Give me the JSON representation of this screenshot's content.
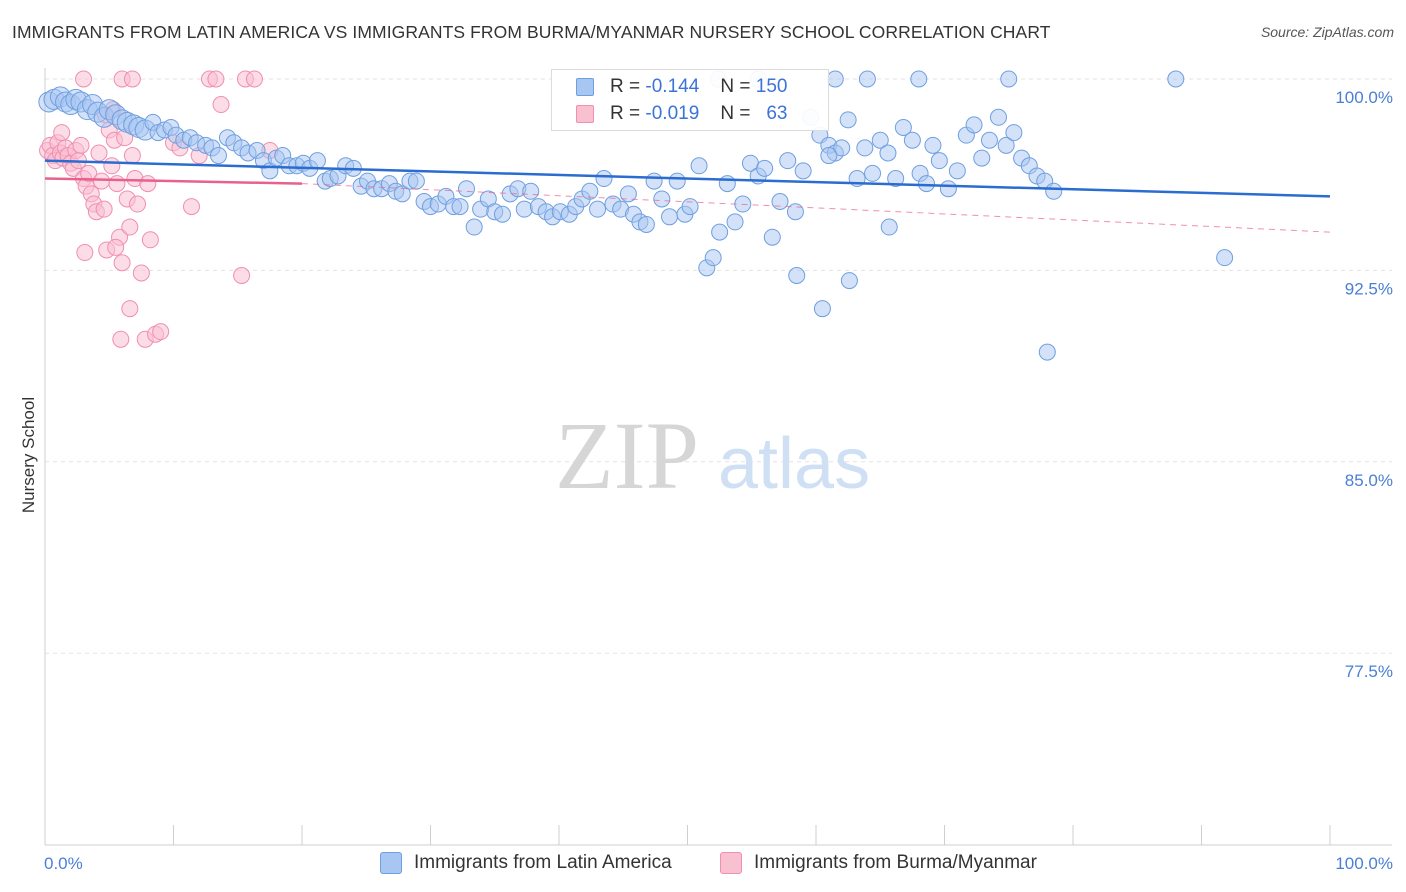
{
  "header": {
    "title": "IMMIGRANTS FROM LATIN AMERICA VS IMMIGRANTS FROM BURMA/MYANMAR NURSERY SCHOOL CORRELATION CHART",
    "source": "Source: ZipAtlas.com"
  },
  "watermark": {
    "zip": "ZIP",
    "atlas": "atlas"
  },
  "legend_stats": {
    "r_label": "R =",
    "n_label": "N =",
    "series1": {
      "r": "-0.144",
      "n": "150"
    },
    "series2": {
      "r": "-0.019",
      "n": "63"
    }
  },
  "colors": {
    "series1_fill": "#a8c6f2",
    "series1_stroke": "#6f9fe0",
    "series1_line": "#2a6ccf",
    "series2_fill": "#f9c0d2",
    "series2_stroke": "#f08fb0",
    "series2_line": "#e8608e",
    "axis_text": "#4a7fd4",
    "grid": "#e3e3e3"
  },
  "chart_data": {
    "type": "scatter",
    "ylabel": "Nursery School",
    "xlabel": "",
    "xlim": [
      0,
      100
    ],
    "ylim": [
      70.0,
      101.5
    ],
    "x_tick_labels": [
      "0.0%",
      "100.0%"
    ],
    "y_ticks": [
      100.0,
      92.5,
      85.0,
      77.5
    ],
    "y_tick_labels": [
      "100.0%",
      "92.5%",
      "85.0%",
      "77.5%"
    ],
    "grid": "horizontal dashed",
    "legend_position": "bottom-center",
    "series": [
      {
        "name": "Immigrants from Latin America",
        "trend": {
          "x": [
            0,
            100
          ],
          "y": [
            96.8,
            95.4
          ]
        },
        "points": [
          [
            0.3,
            99.1
          ],
          [
            0.7,
            99.2
          ],
          [
            1.2,
            99.3
          ],
          [
            1.6,
            99.1
          ],
          [
            2.0,
            99.0
          ],
          [
            2.4,
            99.2
          ],
          [
            2.8,
            99.1
          ],
          [
            3.3,
            98.8
          ],
          [
            3.7,
            99.0
          ],
          [
            4.1,
            98.7
          ],
          [
            4.6,
            98.5
          ],
          [
            5.0,
            98.8
          ],
          [
            5.5,
            98.6
          ],
          [
            6.0,
            98.4
          ],
          [
            6.4,
            98.3
          ],
          [
            6.9,
            98.2
          ],
          [
            7.3,
            98.1
          ],
          [
            7.8,
            98.0
          ],
          [
            8.4,
            98.3
          ],
          [
            8.8,
            97.9
          ],
          [
            9.3,
            98.0
          ],
          [
            9.8,
            98.1
          ],
          [
            10.2,
            97.8
          ],
          [
            10.8,
            97.6
          ],
          [
            11.3,
            97.7
          ],
          [
            11.8,
            97.5
          ],
          [
            12.5,
            97.4
          ],
          [
            13.0,
            97.3
          ],
          [
            13.5,
            97.0
          ],
          [
            14.2,
            97.7
          ],
          [
            14.7,
            97.5
          ],
          [
            15.3,
            97.3
          ],
          [
            15.8,
            97.1
          ],
          [
            16.5,
            97.2
          ],
          [
            17.0,
            96.8
          ],
          [
            17.5,
            96.4
          ],
          [
            18.0,
            96.9
          ],
          [
            18.5,
            97.0
          ],
          [
            19.0,
            96.6
          ],
          [
            19.6,
            96.6
          ],
          [
            20.1,
            96.7
          ],
          [
            20.6,
            96.5
          ],
          [
            21.2,
            96.8
          ],
          [
            21.8,
            96.0
          ],
          [
            22.2,
            96.1
          ],
          [
            22.8,
            96.2
          ],
          [
            23.4,
            96.6
          ],
          [
            24.0,
            96.5
          ],
          [
            24.6,
            95.8
          ],
          [
            25.1,
            96.0
          ],
          [
            25.6,
            95.7
          ],
          [
            26.2,
            95.7
          ],
          [
            26.8,
            95.9
          ],
          [
            27.3,
            95.6
          ],
          [
            27.8,
            95.5
          ],
          [
            28.4,
            96.0
          ],
          [
            28.9,
            96.0
          ],
          [
            29.5,
            95.2
          ],
          [
            30.0,
            95.0
          ],
          [
            30.6,
            95.1
          ],
          [
            31.2,
            95.4
          ],
          [
            31.8,
            95.0
          ],
          [
            32.3,
            95.0
          ],
          [
            32.8,
            95.7
          ],
          [
            33.4,
            94.2
          ],
          [
            33.9,
            94.9
          ],
          [
            34.5,
            95.3
          ],
          [
            35.0,
            94.8
          ],
          [
            35.6,
            94.7
          ],
          [
            36.2,
            95.5
          ],
          [
            36.8,
            95.7
          ],
          [
            37.3,
            94.9
          ],
          [
            37.8,
            95.6
          ],
          [
            38.4,
            95.0
          ],
          [
            39.0,
            94.8
          ],
          [
            39.5,
            94.6
          ],
          [
            40.1,
            94.8
          ],
          [
            40.8,
            94.7
          ],
          [
            41.3,
            95.0
          ],
          [
            41.8,
            95.3
          ],
          [
            42.4,
            95.6
          ],
          [
            43.0,
            94.9
          ],
          [
            43.5,
            96.1
          ],
          [
            44.2,
            95.1
          ],
          [
            44.8,
            94.9
          ],
          [
            45.4,
            95.5
          ],
          [
            45.8,
            94.7
          ],
          [
            46.3,
            94.4
          ],
          [
            46.8,
            94.3
          ],
          [
            47.4,
            96.0
          ],
          [
            48.0,
            95.3
          ],
          [
            48.6,
            94.6
          ],
          [
            49.2,
            96.0
          ],
          [
            49.8,
            94.7
          ],
          [
            50.2,
            95.0
          ],
          [
            50.9,
            96.6
          ],
          [
            51.5,
            92.6
          ],
          [
            52.0,
            93.0
          ],
          [
            52.5,
            94.0
          ],
          [
            53.1,
            95.9
          ],
          [
            53.7,
            94.4
          ],
          [
            54.3,
            95.1
          ],
          [
            54.9,
            96.7
          ],
          [
            55.5,
            96.2
          ],
          [
            56.0,
            96.5
          ],
          [
            56.6,
            93.8
          ],
          [
            57.2,
            95.2
          ],
          [
            57.8,
            96.8
          ],
          [
            58.4,
            94.8
          ],
          [
            59.0,
            96.4
          ],
          [
            59.6,
            98.5
          ],
          [
            60.3,
            97.8
          ],
          [
            61.0,
            97.4
          ],
          [
            61.5,
            97.1
          ],
          [
            62.0,
            97.3
          ],
          [
            62.5,
            98.4
          ],
          [
            63.2,
            96.1
          ],
          [
            63.8,
            97.3
          ],
          [
            64.4,
            96.3
          ],
          [
            65.0,
            97.6
          ],
          [
            65.6,
            97.1
          ],
          [
            66.2,
            96.1
          ],
          [
            66.8,
            98.1
          ],
          [
            67.5,
            97.6
          ],
          [
            68.1,
            96.3
          ],
          [
            68.6,
            95.9
          ],
          [
            69.1,
            97.4
          ],
          [
            69.6,
            96.8
          ],
          [
            70.3,
            95.7
          ],
          [
            71.0,
            96.4
          ],
          [
            71.7,
            97.8
          ],
          [
            72.3,
            98.2
          ],
          [
            72.9,
            96.9
          ],
          [
            73.5,
            97.6
          ],
          [
            74.2,
            98.5
          ],
          [
            74.8,
            97.4
          ],
          [
            75.4,
            97.9
          ],
          [
            76.0,
            96.9
          ],
          [
            76.6,
            96.6
          ],
          [
            77.2,
            96.2
          ],
          [
            77.8,
            96.0
          ],
          [
            78.5,
            95.6
          ],
          [
            58.5,
            92.3
          ],
          [
            62.6,
            92.1
          ],
          [
            65.7,
            94.2
          ],
          [
            60.5,
            91.0
          ],
          [
            61.0,
            97.0
          ],
          [
            78.0,
            89.3
          ],
          [
            91.8,
            93.0
          ],
          [
            52.4,
            100.0
          ],
          [
            55.5,
            100.0
          ],
          [
            61.5,
            100.0
          ],
          [
            64.0,
            100.0
          ],
          [
            68.0,
            100.0
          ],
          [
            75.0,
            100.0
          ],
          [
            88.0,
            100.0
          ]
        ]
      },
      {
        "name": "Immigrants from Burma/Myanmar",
        "trend": {
          "x": [
            0,
            20
          ],
          "y": [
            96.1,
            95.9
          ]
        },
        "points": [
          [
            0.2,
            97.2
          ],
          [
            0.4,
            97.4
          ],
          [
            0.6,
            97.0
          ],
          [
            0.8,
            96.8
          ],
          [
            1.0,
            97.5
          ],
          [
            1.2,
            97.1
          ],
          [
            1.4,
            96.9
          ],
          [
            1.6,
            97.3
          ],
          [
            1.8,
            97.0
          ],
          [
            2.0,
            96.7
          ],
          [
            2.2,
            96.5
          ],
          [
            2.4,
            97.2
          ],
          [
            2.6,
            96.8
          ],
          [
            2.8,
            97.4
          ],
          [
            3.0,
            96.1
          ],
          [
            3.2,
            95.8
          ],
          [
            3.4,
            96.3
          ],
          [
            3.6,
            95.5
          ],
          [
            3.8,
            95.1
          ],
          [
            4.0,
            94.8
          ],
          [
            4.2,
            97.1
          ],
          [
            4.4,
            96.0
          ],
          [
            4.6,
            94.9
          ],
          [
            4.8,
            93.3
          ],
          [
            5.0,
            98.0
          ],
          [
            5.2,
            96.6
          ],
          [
            5.4,
            97.6
          ],
          [
            5.6,
            95.9
          ],
          [
            5.8,
            93.8
          ],
          [
            6.0,
            92.8
          ],
          [
            6.2,
            97.7
          ],
          [
            6.4,
            95.3
          ],
          [
            6.6,
            94.2
          ],
          [
            4.7,
            98.6
          ],
          [
            5.3,
            98.8
          ],
          [
            6.8,
            97.0
          ],
          [
            7.0,
            96.1
          ],
          [
            7.2,
            95.1
          ],
          [
            7.5,
            92.4
          ],
          [
            7.8,
            89.8
          ],
          [
            8.0,
            95.9
          ],
          [
            8.2,
            93.7
          ],
          [
            8.6,
            90.0
          ],
          [
            9.0,
            90.1
          ],
          [
            6.6,
            91.0
          ],
          [
            5.9,
            89.8
          ],
          [
            5.5,
            93.4
          ],
          [
            3.1,
            93.2
          ],
          [
            10.0,
            97.5
          ],
          [
            10.5,
            97.3
          ],
          [
            11.4,
            95.0
          ],
          [
            12.0,
            97.0
          ],
          [
            13.7,
            99.0
          ],
          [
            15.3,
            92.3
          ],
          [
            17.5,
            97.2
          ],
          [
            3.0,
            100.0
          ],
          [
            6.0,
            100.0
          ],
          [
            6.8,
            100.0
          ],
          [
            12.8,
            100.0
          ],
          [
            13.3,
            100.0
          ],
          [
            15.6,
            100.0
          ],
          [
            16.3,
            100.0
          ],
          [
            1.3,
            97.9
          ]
        ]
      }
    ]
  },
  "bottom_legend": {
    "series1": "Immigrants from Latin America",
    "series2": "Immigrants from Burma/Myanmar"
  }
}
